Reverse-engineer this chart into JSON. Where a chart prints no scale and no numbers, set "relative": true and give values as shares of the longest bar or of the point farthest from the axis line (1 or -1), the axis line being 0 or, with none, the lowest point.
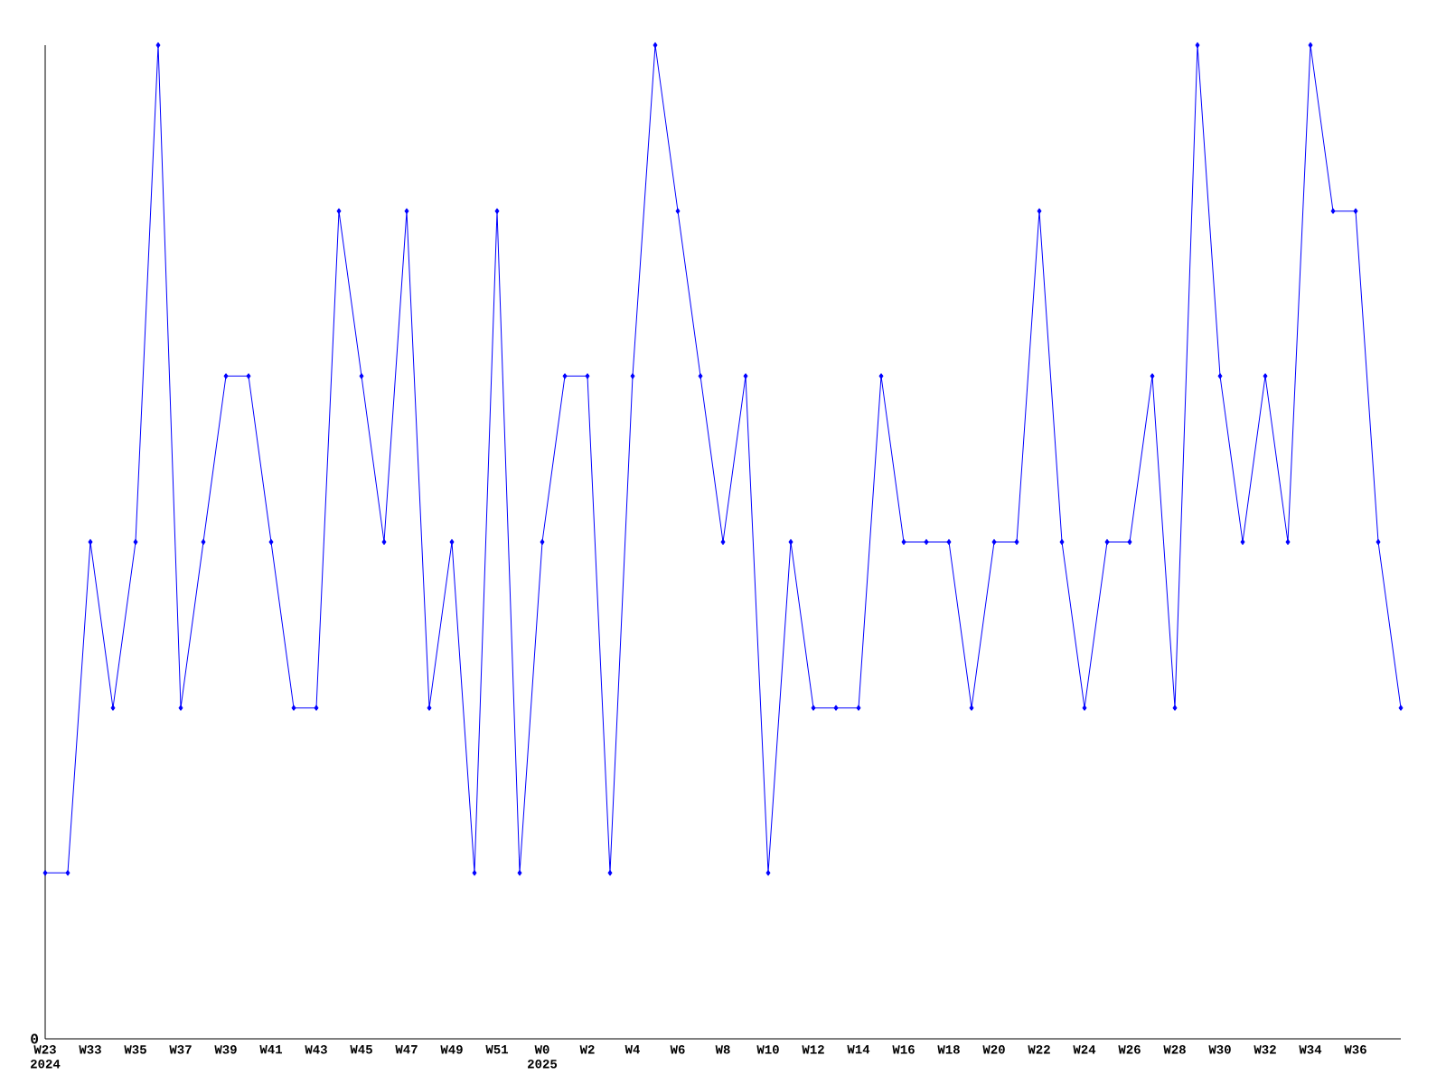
{
  "chart_data": {
    "type": "line",
    "relative": true,
    "color": "#0000ff",
    "marker": "diamond",
    "line_style": "solid",
    "categories": [
      "W23 2024",
      null,
      "W33",
      null,
      "W35",
      null,
      "W37",
      null,
      "W39",
      null,
      "W41",
      null,
      "W43",
      null,
      "W45",
      null,
      "W47",
      null,
      "W49",
      null,
      "W51",
      null,
      "W0 2025",
      null,
      "W2",
      null,
      "W4",
      null,
      "W6",
      null,
      "W8",
      null,
      "W10",
      null,
      "W12",
      null,
      "W14",
      null,
      "W16",
      null,
      "W18",
      null,
      "W20",
      null,
      "W22",
      null,
      "W24",
      null,
      "W26",
      null,
      "W28",
      null,
      "W30",
      null,
      "W32",
      null,
      "W34",
      null,
      "W36",
      null,
      null
    ],
    "values": [
      0.167,
      0.167,
      0.5,
      0.333,
      0.5,
      1,
      0.333,
      0.5,
      0.667,
      0.667,
      0.5,
      0.333,
      0.333,
      0.833,
      0.667,
      0.5,
      0.833,
      0.333,
      0.5,
      0.167,
      0.833,
      0.167,
      0.5,
      0.667,
      0.667,
      0.167,
      0.667,
      1,
      0.833,
      0.667,
      0.5,
      0.667,
      0.167,
      0.5,
      0.333,
      0.333,
      0.333,
      0.667,
      0.5,
      0.5,
      0.5,
      0.333,
      0.5,
      0.5,
      0.833,
      0.5,
      0.333,
      0.5,
      0.5,
      0.667,
      0.333,
      1,
      0.667,
      0.5,
      0.667,
      0.5,
      1,
      0.833,
      0.833,
      0.5,
      0.333
    ],
    "annotations": [
      "0"
    ]
  }
}
